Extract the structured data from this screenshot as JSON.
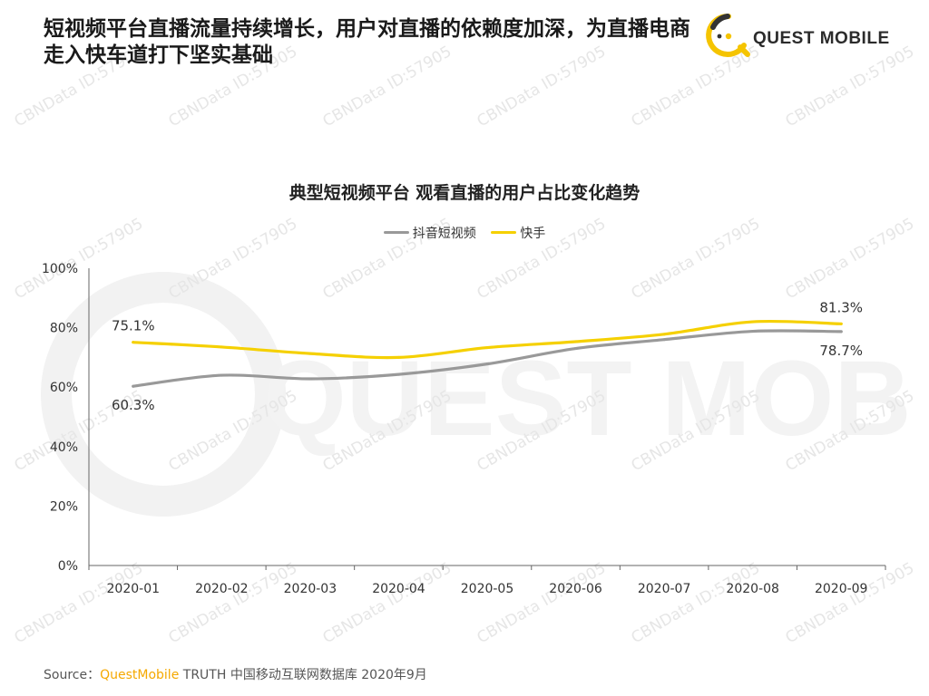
{
  "header": {
    "headline": "短视频平台直播流量持续增长，用户对直播的依赖度加深，为直播电商走入快车道打下坚实基础",
    "logo_text": "QUEST MOBILE",
    "logo_color": "#f5c400"
  },
  "watermark": {
    "text": "CBNData ID:57905",
    "big_text": "QUEST MOBILE"
  },
  "chart_data": {
    "type": "line",
    "title": "典型短视频平台 观看直播的用户占比变化趋势",
    "xlabel": "",
    "ylabel": "",
    "categories": [
      "2020-01",
      "2020-02",
      "2020-03",
      "2020-04",
      "2020-05",
      "2020-06",
      "2020-07",
      "2020-08",
      "2020-09"
    ],
    "ylim": [
      0,
      100
    ],
    "yticks": [
      "0%",
      "20%",
      "40%",
      "60%",
      "80%",
      "100%"
    ],
    "legend_position": "top-center",
    "grid": false,
    "series": [
      {
        "name": "抖音短视频",
        "color": "#999999",
        "values": [
          60.3,
          64.0,
          62.8,
          64.3,
          67.8,
          73.0,
          76.0,
          78.8,
          78.7
        ],
        "labels": [
          {
            "index": 0,
            "text": "60.3%"
          },
          {
            "index": 8,
            "text": "78.7%"
          }
        ]
      },
      {
        "name": "快手",
        "color": "#f5d000",
        "values": [
          75.1,
          73.5,
          71.3,
          70.0,
          73.3,
          75.3,
          77.8,
          82.0,
          81.3
        ],
        "labels": [
          {
            "index": 0,
            "text": "75.1%"
          },
          {
            "index": 8,
            "text": "81.3%"
          }
        ]
      }
    ]
  },
  "footer": {
    "source_prefix": "Source：",
    "source_brand": "QuestMobile",
    "source_rest": " TRUTH 中国移动互联网数据库 2020年9月"
  }
}
